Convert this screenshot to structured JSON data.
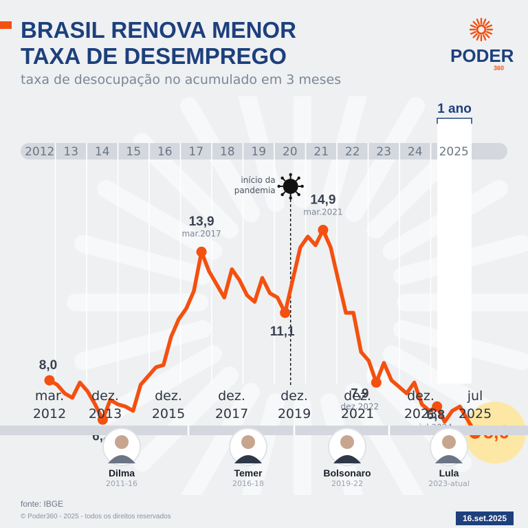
{
  "header": {
    "title_line1": "BRASIL RENOVA MENOR",
    "title_line2": "TAXA DE DESEMPREGO",
    "subtitle": "taxa de desocupação no acumulado em 3 meses"
  },
  "logo": {
    "word": "PODER",
    "number": "360"
  },
  "chart_data": {
    "type": "line",
    "x_unit": "quarters",
    "year_labels": [
      "2012",
      "13",
      "14",
      "15",
      "16",
      "17",
      "18",
      "19",
      "20",
      "21",
      "22",
      "23",
      "24",
      "2025"
    ],
    "highlight_label": "1 ano",
    "pandemic_label_line1": "início da",
    "pandemic_label_line2": "pandemia",
    "series": [
      {
        "values": [
          8.0,
          7.8,
          7.4,
          7.2,
          7.9,
          7.5,
          6.9,
          6.2,
          7.1,
          6.9,
          6.8,
          6.6,
          7.8,
          8.2,
          8.6,
          8.7,
          10.0,
          10.8,
          11.3,
          12.1,
          13.9,
          13.0,
          12.4,
          11.8,
          13.1,
          12.6,
          11.9,
          11.6,
          12.7,
          12.0,
          11.8,
          11.1,
          12.6,
          14.1,
          14.6,
          14.2,
          14.9,
          14.1,
          12.6,
          11.1,
          11.1,
          9.3,
          8.9,
          7.9,
          8.8,
          8.0,
          7.7,
          7.4,
          7.9,
          6.9,
          6.6,
          6.8,
          6.1,
          6.6,
          6.8,
          6.2,
          5.6
        ]
      }
    ],
    "ylim": [
      4,
      17
    ],
    "point_labels": [
      {
        "index": 0,
        "value": "8,0",
        "date": ""
      },
      {
        "index": 7,
        "value": "6,2",
        "date": ""
      },
      {
        "index": 20,
        "value": "13,9",
        "date": "mar.2017"
      },
      {
        "index": 31,
        "value": "11,1",
        "date": ""
      },
      {
        "index": 36,
        "value": "14,9",
        "date": "mar.2021"
      },
      {
        "index": 43,
        "value": "7,9",
        "date": "dez.2022"
      },
      {
        "index": 51,
        "value": "6,8",
        "date": "jul.2024"
      },
      {
        "index": 56,
        "value": "5,6",
        "date": ""
      }
    ],
    "bottom_labels": [
      {
        "month": "mar.",
        "year": "2012"
      },
      {
        "month": "dez.",
        "year": "2013"
      },
      {
        "month": "dez.",
        "year": "2015"
      },
      {
        "month": "dez.",
        "year": "2017"
      },
      {
        "month": "dez.",
        "year": "2019"
      },
      {
        "month": "dez.",
        "year": "2021"
      },
      {
        "month": "dez.",
        "year": "2023"
      },
      {
        "month": "jul",
        "year": "2025"
      }
    ],
    "presidents": [
      {
        "name": "Dilma",
        "period": "2011-16"
      },
      {
        "name": "Temer",
        "period": "2016-18"
      },
      {
        "name": "Bolsonaro",
        "period": "2019-22"
      },
      {
        "name": "Lula",
        "period": "2023-atual"
      }
    ],
    "colors": {
      "line": "#f4500f",
      "title": "#1d3f7c",
      "band": "#d4d8de",
      "last_highlight": "#fde7a4"
    }
  },
  "footer": {
    "source": "fonte: IBGE",
    "copyright": "© Poder360 - 2025 - todos os direitos reservados",
    "date": "16.set.2025"
  }
}
